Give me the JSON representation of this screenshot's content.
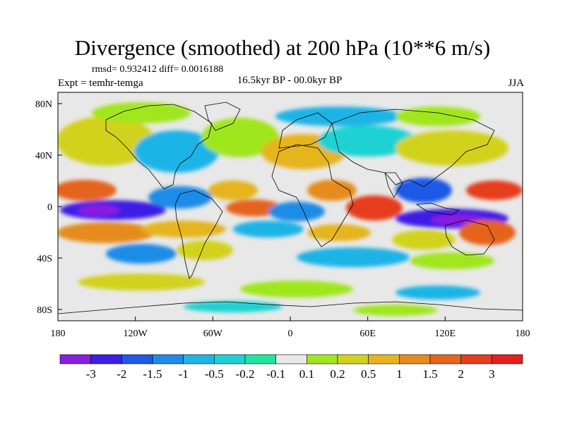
{
  "title": "Divergence (smoothed) at 200 hPa (10**6 m/s)",
  "stats": "rmsd= 0.932412 diff= 0.0016188",
  "experiment": "Expt = temhr-temga",
  "period": "16.5kyr BP - 00.0kyr BP",
  "season": "JJA",
  "axes": {
    "lat_ticks": [
      "80N",
      "40N",
      "0",
      "40S",
      "80S"
    ],
    "lon_ticks": [
      "180",
      "120W",
      "60W",
      "0",
      "60E",
      "120E",
      "180"
    ]
  },
  "colorbar": {
    "labels": [
      "-3",
      "-2",
      "-1.5",
      "-1",
      "-0.5",
      "-0.2",
      "-0.1",
      "0.1",
      "0.2",
      "0.5",
      "1",
      "1.5",
      "2",
      "3"
    ],
    "colors": [
      "#8a1ee0",
      "#3c1ee6",
      "#1e5ae6",
      "#1e8ce6",
      "#1eb4e6",
      "#1ed2d2",
      "#1ee6a0",
      "#e8e8e8",
      "#a0e61e",
      "#d2d21e",
      "#e6b41e",
      "#e68c1e",
      "#e6641e",
      "#e63c1e",
      "#e61e1e"
    ]
  },
  "colors": {
    "ocean_background": "#e8e8e8",
    "coastline": "#000000"
  }
}
